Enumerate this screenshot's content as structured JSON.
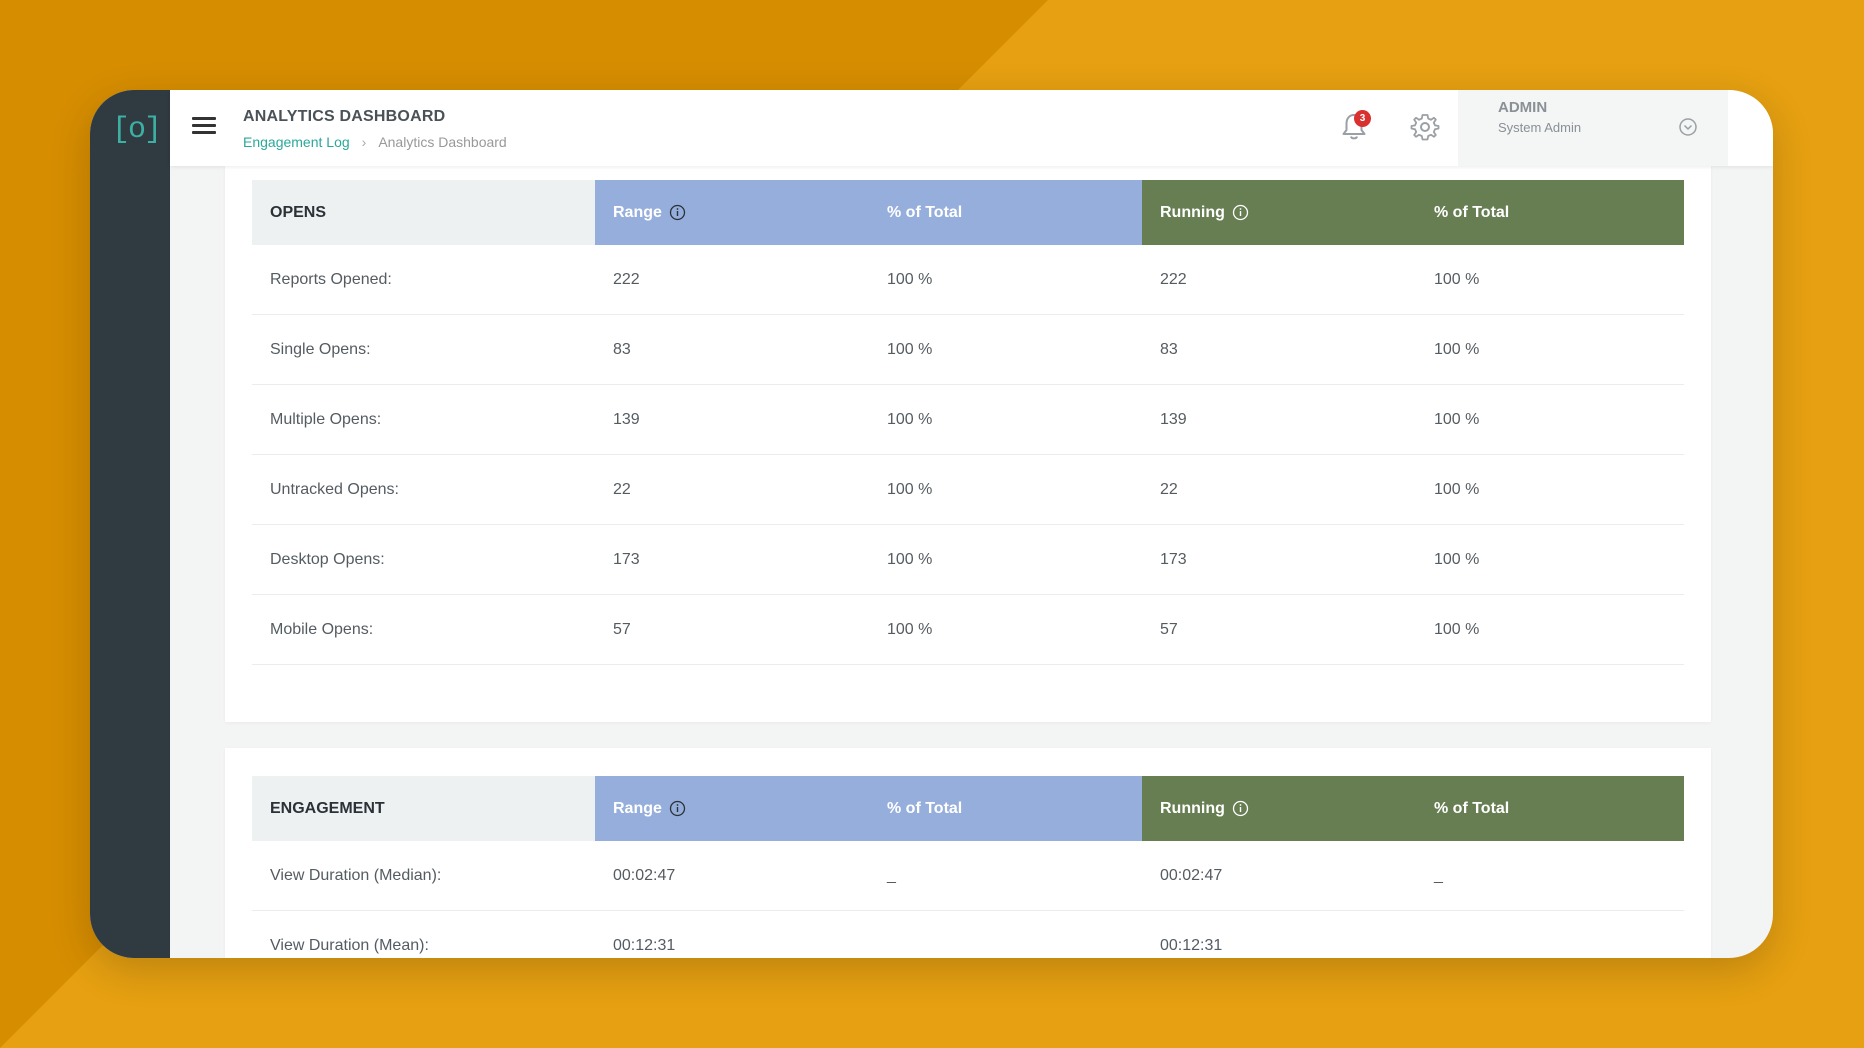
{
  "app": {
    "title": "ANALYTICS DASHBOARD",
    "breadcrumb": {
      "link": "Engagement Log",
      "current": "Analytics Dashboard"
    },
    "logo_text": "[o]",
    "notifications_count": "3",
    "user": {
      "name": "ADMIN",
      "role": "System Admin"
    },
    "colors": {
      "accent": "#2aa89b",
      "range_header": "#96aedc",
      "running_header": "#677e52",
      "sidebar": "#2f3a41",
      "badge": "#d93030",
      "background": "#e6a011"
    },
    "icons": [
      "menu-icon",
      "bell-icon",
      "gear-icon",
      "chevron-down-circle-icon",
      "info-icon"
    ]
  },
  "opens": {
    "header": {
      "label": "OPENS",
      "range": "Range",
      "range_pct": "% of Total",
      "running": "Running",
      "running_pct": "% of Total"
    },
    "rows": [
      {
        "label": "Reports Opened:",
        "range": "222",
        "range_pct": "100 %",
        "running": "222",
        "running_pct": "100 %"
      },
      {
        "label": "Single Opens:",
        "range": "83",
        "range_pct": "100 %",
        "running": "83",
        "running_pct": "100 %"
      },
      {
        "label": "Multiple Opens:",
        "range": "139",
        "range_pct": "100 %",
        "running": "139",
        "running_pct": "100 %"
      },
      {
        "label": "Untracked Opens:",
        "range": "22",
        "range_pct": "100 %",
        "running": "22",
        "running_pct": "100 %"
      },
      {
        "label": "Desktop Opens:",
        "range": "173",
        "range_pct": "100 %",
        "running": "173",
        "running_pct": "100 %"
      },
      {
        "label": "Mobile Opens:",
        "range": "57",
        "range_pct": "100 %",
        "running": "57",
        "running_pct": "100 %"
      }
    ]
  },
  "engagement": {
    "header": {
      "label": "ENGAGEMENT",
      "range": "Range",
      "range_pct": "% of Total",
      "running": "Running",
      "running_pct": "% of Total"
    },
    "rows": [
      {
        "label": "View Duration (Median):",
        "range": "00:02:47",
        "range_pct": "_",
        "running": "00:02:47",
        "running_pct": "_"
      },
      {
        "label": "View Duration (Mean):",
        "range": "00:12:31",
        "range_pct": "",
        "running": "00:12:31",
        "running_pct": ""
      }
    ]
  }
}
